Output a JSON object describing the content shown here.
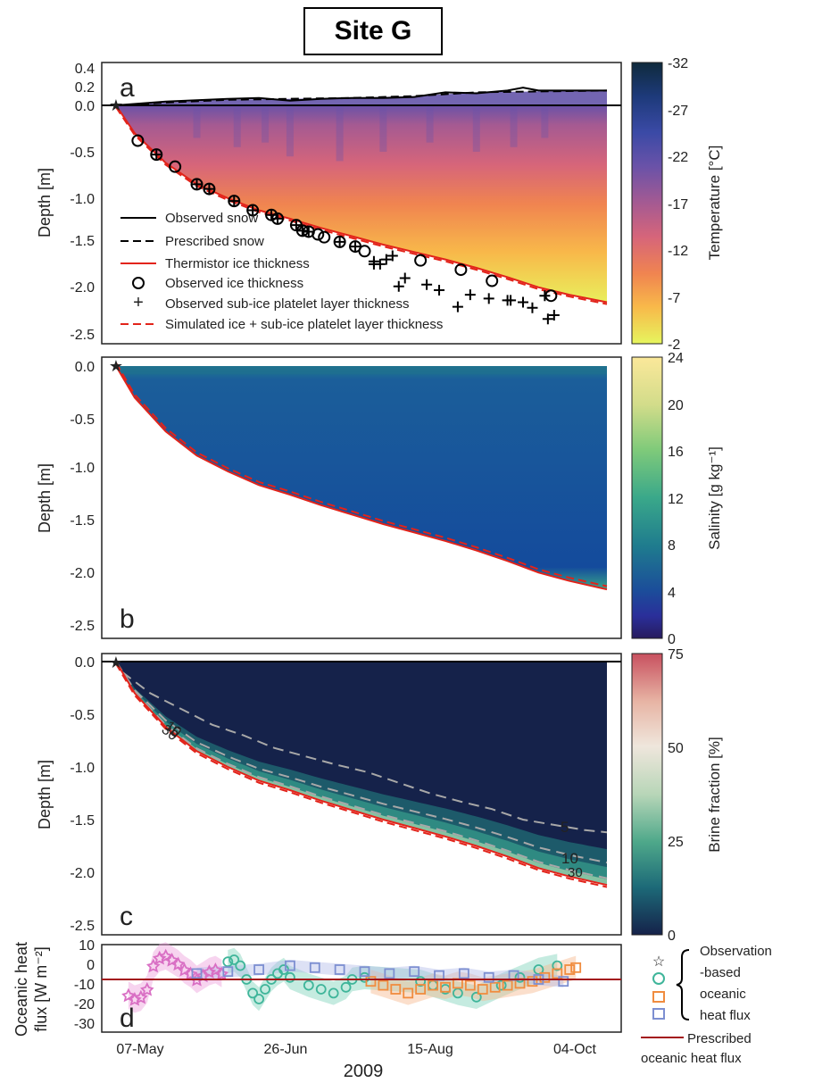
{
  "title": "Site G",
  "year_label": "2009",
  "x_ticks": [
    "07-May",
    "26-Jun",
    "15-Aug",
    "04-Oct"
  ],
  "panels": {
    "a": {
      "label": "a",
      "ylabel": "Depth [m]",
      "yticks": [
        "0.4",
        "0.2",
        "0.0",
        "-0.5",
        "-1.0",
        "-1.5",
        "-2.0",
        "-2.5"
      ],
      "colorbar_label": "Temperature [°C]",
      "colorbar_ticks": [
        "-32",
        "-27",
        "-22",
        "-17",
        "-12",
        "-7",
        "-2"
      ],
      "legend": [
        "Observed snow",
        "Prescribed snow",
        "Thermistor ice thickness",
        "Observed ice thickness",
        "Observed sub-ice platelet layer thickness",
        "Simulated ice + sub-ice platelet layer thickness"
      ]
    },
    "b": {
      "label": "b",
      "ylabel": "Depth [m]",
      "yticks": [
        "0.0",
        "-0.5",
        "-1.0",
        "-1.5",
        "-2.0",
        "-2.5"
      ],
      "colorbar_label": "Salinity [g kg⁻¹]",
      "colorbar_ticks": [
        "24",
        "20",
        "16",
        "12",
        "8",
        "4",
        "0"
      ]
    },
    "c": {
      "label": "c",
      "ylabel": "Depth [m]",
      "yticks": [
        "0.0",
        "-0.5",
        "-1.0",
        "-1.5",
        "-2.0",
        "-2.5"
      ],
      "colorbar_label": "Brine fraction [%]",
      "colorbar_ticks": [
        "75",
        "50",
        "25",
        "0"
      ],
      "contour_labels": [
        "5",
        "10",
        "30",
        "5",
        "10",
        "30"
      ]
    },
    "d": {
      "label": "d",
      "ylabel_line1": "Oceanic heat",
      "ylabel_line2": "flux [W m⁻²]",
      "yticks": [
        "10",
        "0",
        "-10",
        "-20",
        "-30"
      ],
      "legend_group": [
        "Observation",
        "-based",
        "oceanic",
        "heat flux"
      ],
      "legend_line": [
        "Prescribed",
        "oceanic heat flux"
      ]
    }
  },
  "chart_data": [
    {
      "type": "area",
      "panel": "a",
      "x_unit": "day of 2009",
      "start_day": 124,
      "end_day": 282,
      "ylim": [
        -2.6,
        0.45
      ],
      "colorbar_range": [
        -32,
        -2
      ],
      "ice_thickness_curve": {
        "x": [
          124,
          130,
          140,
          150,
          160,
          170,
          180,
          190,
          200,
          210,
          220,
          230,
          240,
          250,
          260,
          270,
          282
        ],
        "y": [
          0,
          -0.3,
          -0.62,
          -0.85,
          -1.0,
          -1.13,
          -1.22,
          -1.32,
          -1.41,
          -1.5,
          -1.58,
          -1.66,
          -1.75,
          -1.85,
          -1.96,
          -2.04,
          -2.12
        ]
      },
      "observed_snow": {
        "x": [
          124,
          140,
          160,
          170,
          180,
          190,
          200,
          210,
          220,
          230,
          240,
          250,
          255,
          260,
          270,
          282
        ],
        "y": [
          0,
          0.04,
          0.07,
          0.08,
          0.05,
          0.07,
          0.08,
          0.08,
          0.09,
          0.14,
          0.13,
          0.16,
          0.19,
          0.16,
          0.16,
          0.16
        ]
      },
      "prescribed_snow": {
        "x": [
          124,
          140,
          160,
          180,
          200,
          220,
          240,
          260,
          282
        ],
        "y": [
          0,
          0.03,
          0.06,
          0.07,
          0.08,
          0.1,
          0.14,
          0.15,
          0.16
        ]
      },
      "observed_ice_thickness": {
        "x": [
          131,
          137,
          143,
          150,
          154,
          162,
          168,
          174,
          176,
          182,
          184,
          186,
          189,
          191,
          196,
          201,
          204,
          222,
          235,
          245,
          264
        ],
        "y": [
          -0.38,
          -0.53,
          -0.66,
          -0.85,
          -0.9,
          -1.03,
          -1.13,
          -1.18,
          -1.22,
          -1.29,
          -1.35,
          -1.36,
          -1.39,
          -1.42,
          -1.47,
          -1.52,
          -1.57,
          -1.67,
          -1.77,
          -1.89,
          -2.05
        ]
      },
      "observed_platelet_layer": {
        "x": [
          137,
          150,
          154,
          162,
          168,
          174,
          176,
          182,
          184,
          186,
          196,
          201,
          207,
          207,
          209,
          211,
          213,
          215,
          217,
          224,
          228,
          234,
          238,
          244,
          250,
          251,
          255,
          258,
          262,
          263,
          265
        ],
        "y": [
          -0.53,
          -0.85,
          -0.9,
          -1.03,
          -1.13,
          -1.18,
          -1.22,
          -1.29,
          -1.35,
          -1.36,
          -1.47,
          -1.52,
          -1.68,
          -1.71,
          -1.71,
          -1.66,
          -1.62,
          -1.95,
          -1.86,
          -1.93,
          -1.99,
          -2.17,
          -2.04,
          -2.08,
          -2.1,
          -2.1,
          -2.12,
          -2.18,
          -2.05,
          -2.3,
          -2.26
        ]
      }
    },
    {
      "type": "area",
      "panel": "b",
      "ylim": [
        -2.6,
        0.05
      ],
      "colorbar_range": [
        0,
        24
      ],
      "simulated_bottom": {
        "x": [
          124,
          130,
          140,
          150,
          160,
          170,
          180,
          190,
          200,
          210,
          220,
          230,
          240,
          250,
          260,
          270,
          282
        ],
        "y": [
          0,
          -0.3,
          -0.62,
          -0.85,
          -1.0,
          -1.13,
          -1.22,
          -1.32,
          -1.41,
          -1.5,
          -1.58,
          -1.66,
          -1.75,
          -1.85,
          -1.96,
          -2.04,
          -2.12
        ]
      }
    },
    {
      "type": "area",
      "panel": "c",
      "ylim": [
        -2.6,
        0.05
      ],
      "colorbar_range": [
        0,
        75
      ],
      "contour_5": {
        "x": [
          126,
          135,
          145,
          155,
          165,
          175,
          185,
          195,
          205,
          215,
          225,
          235,
          245,
          255,
          265,
          275,
          282
        ],
        "y": [
          -0.1,
          -0.3,
          -0.45,
          -0.6,
          -0.7,
          -0.82,
          -0.9,
          -0.98,
          -1.05,
          -1.15,
          -1.25,
          -1.33,
          -1.4,
          -1.5,
          -1.55,
          -1.6,
          -1.62
        ]
      }
    },
    {
      "type": "scatter",
      "panel": "d",
      "ylim": [
        -30,
        10
      ],
      "xlim": [
        124,
        282
      ],
      "prescribed_flux": -5,
      "series": [
        {
          "marker": "star",
          "color": "#d96fc4",
          "x": [
            128,
            130,
            132,
            134,
            136,
            138,
            140,
            142,
            144,
            146,
            148,
            150,
            152,
            154,
            156,
            158
          ],
          "y": [
            -13,
            -15,
            -14,
            -10,
            2,
            6,
            7,
            5,
            3,
            0,
            -2,
            -5,
            -3,
            -1,
            0,
            -2
          ]
        },
        {
          "marker": "circle",
          "color": "#3fb59a",
          "x": [
            160,
            162,
            164,
            166,
            168,
            170,
            172,
            174,
            176,
            178,
            180,
            186,
            190,
            194,
            198,
            200,
            204,
            222,
            226,
            230,
            234,
            240,
            248,
            254,
            260,
            266
          ],
          "y": [
            4,
            5,
            2,
            -5,
            -12,
            -15,
            -10,
            -5,
            -2,
            0,
            -4,
            -8,
            -10,
            -12,
            -9,
            -5,
            -4,
            -6,
            -8,
            -10,
            -12,
            -14,
            -8,
            -4,
            0,
            2
          ]
        },
        {
          "marker": "square",
          "color": "#f08c3f",
          "x": [
            206,
            210,
            214,
            218,
            222,
            226,
            230,
            234,
            238,
            242,
            246,
            250,
            254,
            258,
            262,
            266,
            270,
            272
          ],
          "y": [
            -6,
            -8,
            -10,
            -12,
            -10,
            -8,
            -9,
            -7,
            -8,
            -10,
            -9,
            -8,
            -7,
            -6,
            -4,
            -2,
            0,
            1
          ]
        },
        {
          "marker": "square",
          "color": "#7d8fd1",
          "x": [
            150,
            160,
            170,
            180,
            188,
            196,
            204,
            212,
            220,
            228,
            236,
            244,
            252,
            260,
            268
          ],
          "y": [
            -2,
            -1,
            0,
            2,
            1,
            0,
            -1,
            -2,
            -1,
            -3,
            -2,
            -4,
            -3,
            -5,
            -6
          ]
        }
      ]
    }
  ]
}
